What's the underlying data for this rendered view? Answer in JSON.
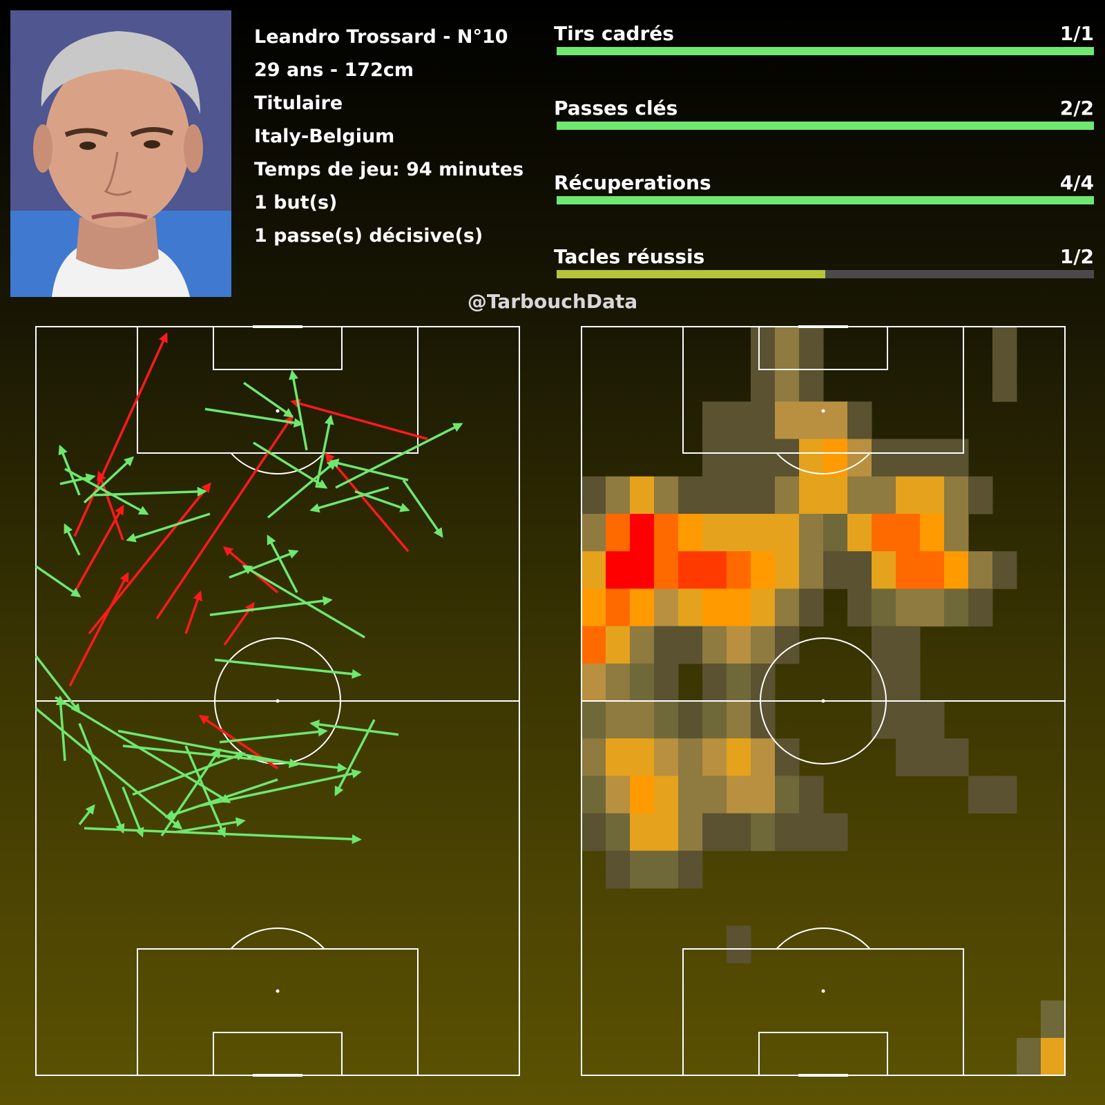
{
  "player": {
    "name_line": "Leandro Trossard - N°10",
    "age_height": "29 ans - 172cm",
    "status": "Titulaire",
    "match": "Italy-Belgium",
    "playing_time": "Temps de jeu: 94 minutes",
    "goals": "1 but(s)",
    "assists": "1 passe(s) décisive(s)"
  },
  "stats": [
    {
      "label": "Tirs cadrés",
      "value": "1/1",
      "ratio": 1.0,
      "color": "#6ee86e"
    },
    {
      "label": "Passes clés",
      "value": "2/2",
      "ratio": 1.0,
      "color": "#6ee86e"
    },
    {
      "label": "Récuperations",
      "value": "4/4",
      "ratio": 1.0,
      "color": "#6ee86e"
    },
    {
      "label": "Tacles réussis",
      "value": "1/2",
      "ratio": 0.5,
      "color": "#b6c43a"
    }
  ],
  "credit": "@TarbouchData",
  "colors": {
    "success": "#6ee86e",
    "fail": "#ff1a1a",
    "lines": "#ffffff"
  },
  "chart_data": [
    {
      "type": "scatter",
      "title": "",
      "units": "pitch coordinates 0-100, x across width, y along length (100 = opponent goal line)",
      "passes": [
        {
          "x1": 7,
          "y1": 4,
          "x2": 19,
          "y2": 34,
          "ok": false
        },
        {
          "x1": 11,
          "y1": 18,
          "x2": 36,
          "y2": 58,
          "ok": false
        },
        {
          "x1": 25,
          "y1": 22,
          "x2": 53,
          "y2": 76,
          "ok": false
        },
        {
          "x1": 8,
          "y1": 29,
          "x2": 18,
          "y2": 52,
          "ok": false
        },
        {
          "x1": 31,
          "y1": 18,
          "x2": 34,
          "y2": 29,
          "ok": false
        },
        {
          "x1": 39,
          "y1": 15,
          "x2": 45,
          "y2": 26,
          "ok": false
        },
        {
          "x1": 50,
          "y1": 29,
          "x2": 39,
          "y2": 41,
          "ok": false
        },
        {
          "x1": 81,
          "y1": 70,
          "x2": 53,
          "y2": 80,
          "ok": false
        },
        {
          "x1": 8,
          "y1": 44,
          "x2": 27,
          "y2": 98,
          "ok": false
        },
        {
          "x1": 50,
          "y1": -18,
          "x2": 34,
          "y2": -4,
          "ok": false
        },
        {
          "x1": 77,
          "y1": 40,
          "x2": 60,
          "y2": 66,
          "ok": false
        },
        {
          "x1": 18,
          "y1": 43,
          "x2": 13,
          "y2": 61,
          "ok": false
        },
        {
          "x1": 9,
          "y1": 55,
          "x2": 5,
          "y2": 68,
          "ok": true
        },
        {
          "x1": 0,
          "y1": 36,
          "x2": 9,
          "y2": 28,
          "ok": true
        },
        {
          "x1": 6,
          "y1": 62,
          "x2": 23,
          "y2": 50,
          "ok": true
        },
        {
          "x1": 9,
          "y1": 39,
          "x2": 6,
          "y2": 47,
          "ok": true
        },
        {
          "x1": 10,
          "y1": 53,
          "x2": 20,
          "y2": 65,
          "ok": true
        },
        {
          "x1": 5,
          "y1": 58,
          "x2": 12,
          "y2": 60,
          "ok": true
        },
        {
          "x1": 35,
          "y1": 78,
          "x2": 55,
          "y2": 74,
          "ok": true
        },
        {
          "x1": 12,
          "y1": 55,
          "x2": 35,
          "y2": 56,
          "ok": true
        },
        {
          "x1": 54,
          "y1": 29,
          "x2": 48,
          "y2": 44,
          "ok": true
        },
        {
          "x1": 56,
          "y1": 67,
          "x2": 53,
          "y2": 88,
          "ok": true
        },
        {
          "x1": 66,
          "y1": 56,
          "x2": 77,
          "y2": 51,
          "ok": true
        },
        {
          "x1": 62,
          "y1": 57,
          "x2": 88,
          "y2": 74,
          "ok": true
        },
        {
          "x1": 36,
          "y1": 23,
          "x2": 61,
          "y2": 27,
          "ok": true
        },
        {
          "x1": 36,
          "y1": 50,
          "x2": 19,
          "y2": 43,
          "ok": true
        },
        {
          "x1": 40,
          "y1": 33,
          "x2": 54,
          "y2": 40,
          "ok": true
        },
        {
          "x1": 76,
          "y1": 59,
          "x2": 84,
          "y2": 44,
          "ok": true
        },
        {
          "x1": 68,
          "y1": 17,
          "x2": 43,
          "y2": 36,
          "ok": true
        },
        {
          "x1": 45,
          "y1": 69,
          "x2": 60,
          "y2": 57,
          "ok": true
        },
        {
          "x1": 77,
          "y1": 59,
          "x2": 61,
          "y2": 64,
          "ok": true
        },
        {
          "x1": 48,
          "y1": 49,
          "x2": 62,
          "y2": 64,
          "ok": true
        },
        {
          "x1": 43,
          "y1": 85,
          "x2": 53,
          "y2": 76,
          "ok": true
        },
        {
          "x1": 58,
          "y1": 57,
          "x2": 61,
          "y2": 76,
          "ok": true
        },
        {
          "x1": 70,
          "y1": -5,
          "x2": 62,
          "y2": -25,
          "ok": true
        },
        {
          "x1": 20,
          "y1": -25,
          "x2": 43,
          "y2": -14,
          "ok": true
        },
        {
          "x1": 50,
          "y1": -21,
          "x2": 27,
          "y2": -31,
          "ok": true
        },
        {
          "x1": 73,
          "y1": 57,
          "x2": 57,
          "y2": 51,
          "ok": true
        },
        {
          "x1": 26,
          "y1": -36,
          "x2": 38,
          "y2": -13,
          "ok": true
        },
        {
          "x1": 34,
          "y1": -28,
          "x2": 67,
          "y2": -19,
          "ok": true
        },
        {
          "x1": 0,
          "y1": -2,
          "x2": 30,
          "y2": -34,
          "ok": true
        },
        {
          "x1": 31,
          "y1": -12,
          "x2": 39,
          "y2": -36,
          "ok": true
        },
        {
          "x1": 10,
          "y1": -34,
          "x2": 67,
          "y2": -37,
          "ok": true
        },
        {
          "x1": 18,
          "y1": -23,
          "x2": 22,
          "y2": -36,
          "ok": true
        },
        {
          "x1": 9,
          "y1": -33,
          "x2": 12,
          "y2": -28,
          "ok": true
        },
        {
          "x1": 17,
          "y1": -8,
          "x2": 54,
          "y2": -17,
          "ok": true
        },
        {
          "x1": 6,
          "y1": -16,
          "x2": 5,
          "y2": 1,
          "ok": true
        },
        {
          "x1": 4,
          "y1": 1,
          "x2": 40,
          "y2": -27,
          "ok": true
        },
        {
          "x1": 38,
          "y1": -11,
          "x2": 60,
          "y2": -8,
          "ok": true
        },
        {
          "x1": 18,
          "y1": -12,
          "x2": 64,
          "y2": -18,
          "ok": true
        },
        {
          "x1": 75,
          "y1": -9,
          "x2": 57,
          "y2": -6,
          "ok": true
        },
        {
          "x1": 0,
          "y1": 12,
          "x2": 9,
          "y2": -3,
          "ok": true
        },
        {
          "x1": 37,
          "y1": 11,
          "x2": 67,
          "y2": 7,
          "ok": true
        },
        {
          "x1": 9,
          "y1": -6,
          "x2": 18,
          "y2": -35,
          "ok": true
        },
        {
          "x1": 29,
          "y1": -35,
          "x2": 43,
          "y2": -32,
          "ok": true
        }
      ]
    },
    {
      "type": "heatmap",
      "title": "",
      "grid": {
        "cols": 20,
        "rows": 20
      },
      "note": "rows from top (attack) to bottom (defence); values 0-9 intensity",
      "cells": [
        [
          0,
          0,
          0,
          0,
          0,
          0,
          0,
          1,
          3,
          1,
          0,
          0,
          0,
          0,
          0,
          0,
          0,
          1,
          0,
          0
        ],
        [
          0,
          0,
          0,
          0,
          0,
          0,
          0,
          1,
          3,
          1,
          0,
          0,
          0,
          0,
          0,
          0,
          0,
          1,
          0,
          0
        ],
        [
          0,
          0,
          0,
          0,
          0,
          1,
          1,
          1,
          4,
          4,
          4,
          1,
          0,
          0,
          0,
          0,
          0,
          0,
          0,
          0
        ],
        [
          0,
          0,
          0,
          0,
          0,
          1,
          1,
          1,
          1,
          5,
          6,
          4,
          1,
          1,
          1,
          1,
          0,
          0,
          0,
          0
        ],
        [
          1,
          3,
          5,
          3,
          1,
          1,
          1,
          1,
          3,
          5,
          5,
          3,
          3,
          5,
          5,
          3,
          1,
          0,
          0,
          0
        ],
        [
          3,
          7,
          9,
          7,
          6,
          5,
          5,
          5,
          5,
          3,
          2,
          5,
          7,
          7,
          6,
          3,
          0,
          0,
          0,
          0
        ],
        [
          5,
          9,
          9,
          7,
          8,
          8,
          7,
          6,
          5,
          3,
          1,
          1,
          5,
          7,
          7,
          6,
          3,
          1,
          0,
          0
        ],
        [
          6,
          7,
          6,
          4,
          5,
          6,
          6,
          5,
          3,
          1,
          0,
          1,
          2,
          3,
          3,
          2,
          1,
          0,
          0,
          0
        ],
        [
          7,
          5,
          3,
          1,
          1,
          3,
          4,
          3,
          1,
          0,
          0,
          0,
          1,
          1,
          0,
          0,
          0,
          0,
          0,
          0
        ],
        [
          4,
          3,
          2,
          1,
          0,
          1,
          2,
          1,
          0,
          0,
          0,
          0,
          1,
          1,
          0,
          0,
          0,
          0,
          0,
          0
        ],
        [
          2,
          3,
          3,
          2,
          1,
          2,
          3,
          1,
          0,
          0,
          0,
          0,
          1,
          1,
          1,
          0,
          0,
          0,
          0,
          0
        ],
        [
          3,
          5,
          5,
          4,
          3,
          4,
          5,
          4,
          1,
          0,
          0,
          0,
          0,
          1,
          1,
          1,
          0,
          0,
          0,
          0
        ],
        [
          2,
          4,
          6,
          5,
          3,
          3,
          4,
          4,
          2,
          1,
          0,
          0,
          0,
          0,
          0,
          0,
          1,
          1,
          0,
          0
        ],
        [
          1,
          2,
          5,
          5,
          3,
          1,
          1,
          2,
          1,
          1,
          1,
          0,
          0,
          0,
          0,
          0,
          0,
          0,
          0,
          0
        ],
        [
          0,
          1,
          2,
          2,
          1,
          0,
          0,
          0,
          0,
          0,
          0,
          0,
          0,
          0,
          0,
          0,
          0,
          0,
          0,
          0
        ],
        [
          0,
          0,
          0,
          0,
          0,
          0,
          0,
          0,
          0,
          0,
          0,
          0,
          0,
          0,
          0,
          0,
          0,
          0,
          0,
          0
        ],
        [
          0,
          0,
          0,
          0,
          0,
          0,
          1,
          0,
          0,
          0,
          0,
          0,
          0,
          0,
          0,
          0,
          0,
          0,
          0,
          0
        ],
        [
          0,
          0,
          0,
          0,
          0,
          0,
          0,
          0,
          0,
          0,
          0,
          0,
          0,
          0,
          0,
          0,
          0,
          0,
          0,
          0
        ],
        [
          0,
          0,
          0,
          0,
          0,
          0,
          0,
          0,
          0,
          0,
          0,
          0,
          0,
          0,
          0,
          0,
          0,
          0,
          0,
          2
        ],
        [
          0,
          0,
          0,
          0,
          0,
          0,
          0,
          0,
          0,
          0,
          0,
          0,
          0,
          0,
          0,
          0,
          0,
          0,
          2,
          5
        ]
      ]
    }
  ]
}
